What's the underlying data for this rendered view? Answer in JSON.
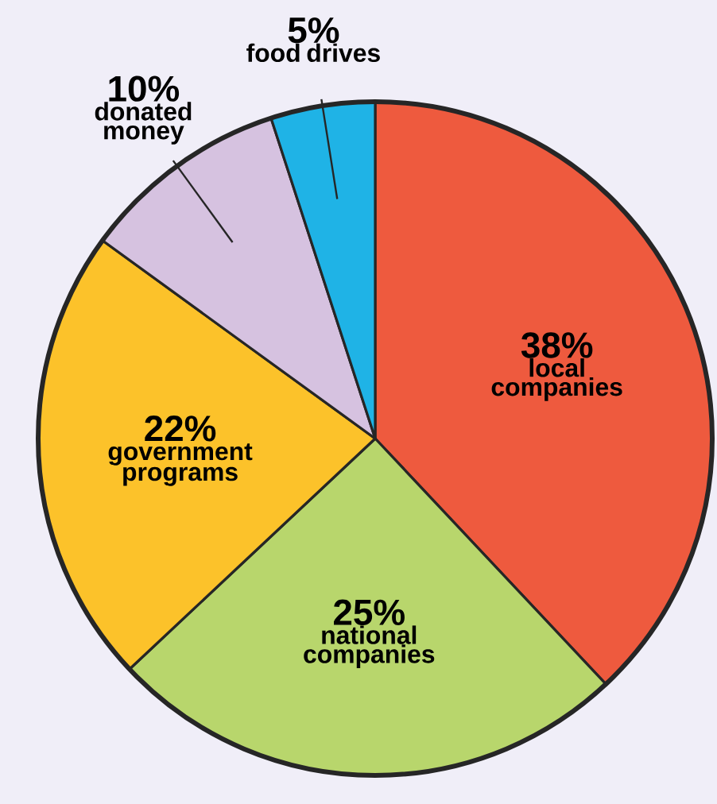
{
  "chart_data": {
    "type": "pie",
    "categories": [
      "local companies",
      "national companies",
      "government programs",
      "donated money",
      "food drives"
    ],
    "values": [
      38,
      25,
      22,
      10,
      5
    ],
    "value_labels": [
      "38%",
      "25%",
      "22%",
      "10%",
      "5%"
    ],
    "colors": [
      "#ee5a3e",
      "#b8d66c",
      "#fcc22a",
      "#d6c2e0",
      "#1fb3e6"
    ]
  }
}
